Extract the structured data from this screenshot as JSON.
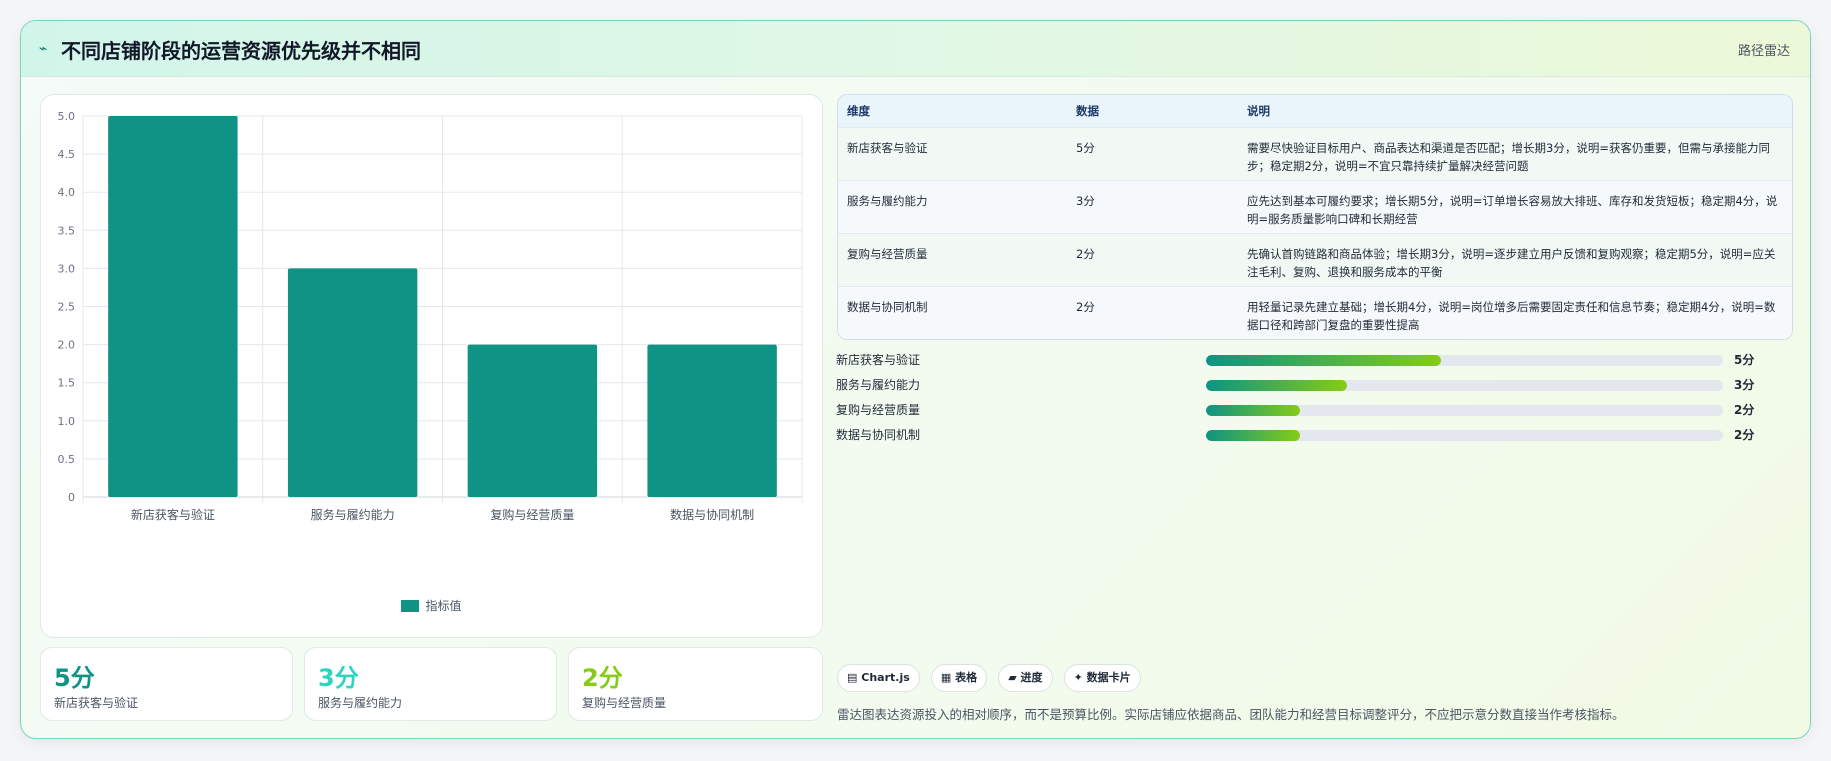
{
  "header": {
    "icon": "trend-line-icon",
    "title": "不同店铺阶段的运营资源优先级并不相同",
    "right_label": "路径雷达"
  },
  "colors": {
    "bar": "#0e9384",
    "accent_teal": "#0e9384",
    "accent_cyan": "#2dd4bf",
    "accent_green": "#84cc16"
  },
  "chart_data": {
    "type": "bar",
    "categories": [
      "新店获客与验证",
      "服务与履约能力",
      "复购与经营质量",
      "数据与协同机制"
    ],
    "series": [
      {
        "name": "指标值",
        "values": [
          5,
          3,
          2,
          2
        ]
      }
    ],
    "ylim": [
      0,
      5
    ],
    "yticks": [
      "0",
      "0.5",
      "1.0",
      "1.5",
      "2.0",
      "2.5",
      "3.0",
      "3.5",
      "4.0",
      "4.5",
      "5.0"
    ],
    "grid": true,
    "legend": "bottom-center"
  },
  "stats": [
    {
      "value": "5分",
      "label": "新店获客与验证",
      "color": "#0e9384"
    },
    {
      "value": "3分",
      "label": "服务与履约能力",
      "color": "#2dd4bf"
    },
    {
      "value": "2分",
      "label": "复购与经营质量",
      "color": "#84cc16"
    }
  ],
  "table": {
    "headers": [
      "维度",
      "数据",
      "说明"
    ],
    "rows": [
      {
        "dimension": "新店获客与验证",
        "value": "5分",
        "note": "需要尽快验证目标用户、商品表达和渠道是否匹配；增长期3分，说明=获客仍重要，但需与承接能力同步；稳定期2分，说明=不宜只靠持续扩量解决经营问题"
      },
      {
        "dimension": "服务与履约能力",
        "value": "3分",
        "note": "应先达到基本可履约要求；增长期5分，说明=订单增长容易放大排班、库存和发货短板；稳定期4分，说明=服务质量影响口碑和长期经营"
      },
      {
        "dimension": "复购与经营质量",
        "value": "2分",
        "note": "先确认首购链路和商品体验；增长期3分，说明=逐步建立用户反馈和复购观察；稳定期5分，说明=应关注毛利、复购、退换和服务成本的平衡"
      },
      {
        "dimension": "数据与协同机制",
        "value": "2分",
        "note": "用轻量记录先建立基础；增长期4分，说明=岗位增多后需要固定责任和信息节奏；稳定期4分，说明=数据口径和跨部门复盘的重要性提高"
      }
    ]
  },
  "progress": [
    {
      "label": "新店获客与验证",
      "fraction": 0.454,
      "value": "5分"
    },
    {
      "label": "服务与履约能力",
      "fraction": 0.272,
      "value": "3分"
    },
    {
      "label": "复购与经营质量",
      "fraction": 0.182,
      "value": "2分"
    },
    {
      "label": "数据与协同机制",
      "fraction": 0.182,
      "value": "2分"
    }
  ],
  "chips": [
    {
      "icon": "chart-icon",
      "glyph": "▤",
      "label": "Chart.js"
    },
    {
      "icon": "table-icon",
      "glyph": "▦",
      "label": "表格"
    },
    {
      "icon": "progress-icon",
      "glyph": "▰",
      "label": "进度"
    },
    {
      "icon": "sparkle-icon",
      "glyph": "✦",
      "label": "数据卡片"
    }
  ],
  "footnote": "雷达图表达资源投入的相对顺序，而不是预算比例。实际店铺应依据商品、团队能力和经营目标调整评分，不应把示意分数直接当作考核指标。"
}
